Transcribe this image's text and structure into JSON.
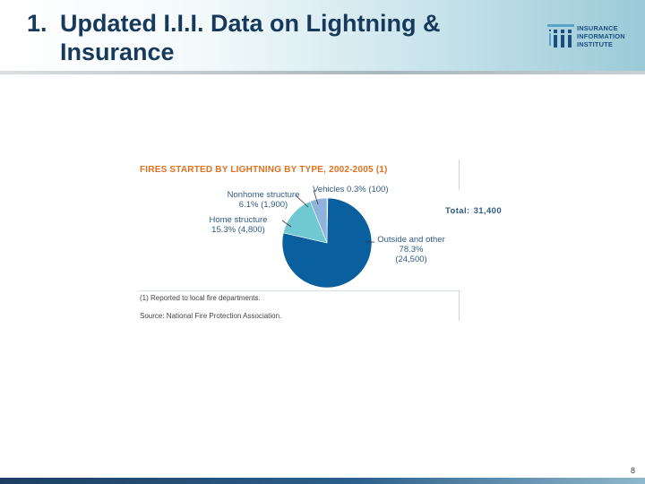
{
  "slide": {
    "title_number": "1.",
    "title_text": "Updated I.I.I. Data on Lightning & Insurance",
    "page_number": "8"
  },
  "logo": {
    "icon": "iii-logo-icon",
    "line1": "INSURANCE",
    "line2": "INFORMATION",
    "line3": "INSTITUTE"
  },
  "colors": {
    "title": "#17395c",
    "chart_title": "#e2701f",
    "label": "#2f5b84",
    "outside": "#0a5f9e",
    "home": "#6fc8d2",
    "nonhome": "#8fb3db",
    "vehicles": "#1a7fb8"
  },
  "chart_data": {
    "type": "pie",
    "title": "FIRES STARTED BY LIGHTNING BY TYPE, 2002-2005 (1)",
    "total_label": "Total:",
    "total_value": "31,400",
    "slices": [
      {
        "name": "Outside and other",
        "percent": 78.3,
        "percent_label": "78.3%",
        "count_label": "(24,500)",
        "value": 24500,
        "color": "#0a5f9e"
      },
      {
        "name": "Home structure",
        "percent": 15.3,
        "percent_label": "15.3%",
        "count_label": "(4,800)",
        "value": 4800,
        "color": "#6fc8d2"
      },
      {
        "name": "Nonhome structure",
        "percent": 6.1,
        "percent_label": "6.1%",
        "count_label": "(1,900)",
        "value": 1900,
        "color": "#8fb3db"
      },
      {
        "name": "Vehicles",
        "percent": 0.3,
        "percent_label": "0.3%",
        "count_label": "(100)",
        "value": 100,
        "color": "#1a7fb8"
      }
    ],
    "footnote": "(1) Reported to local fire departments.",
    "source": "Source: National Fire Protection Association."
  }
}
